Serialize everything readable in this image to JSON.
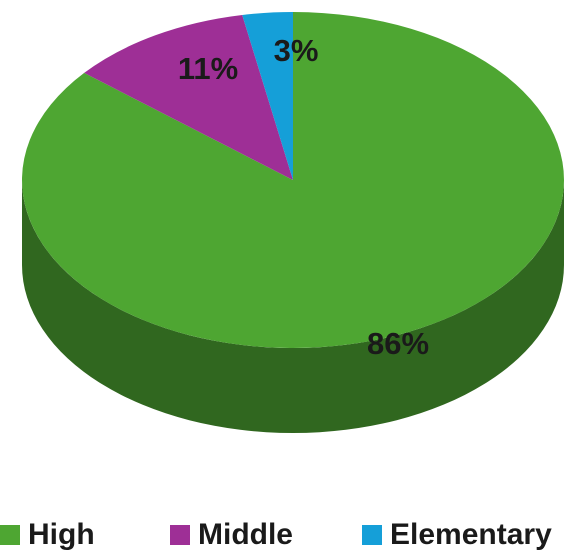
{
  "chart_data": {
    "type": "pie",
    "title": "",
    "series": [
      {
        "categories": [
          "High",
          "Middle",
          "Elementary"
        ],
        "values": [
          86,
          11,
          3
        ],
        "labels": [
          "86%",
          "11%",
          "3%"
        ]
      }
    ],
    "colors": {
      "High": "#4ea632",
      "Middle": "#9e2f96",
      "Elementary": "#159fd8"
    },
    "style": "3d",
    "legend_position": "bottom"
  },
  "legend": {
    "items": [
      {
        "label": "High",
        "color": "#4ea632"
      },
      {
        "label": "Middle",
        "color": "#9e2f96"
      },
      {
        "label": "Elementary",
        "color": "#159fd8"
      }
    ]
  }
}
